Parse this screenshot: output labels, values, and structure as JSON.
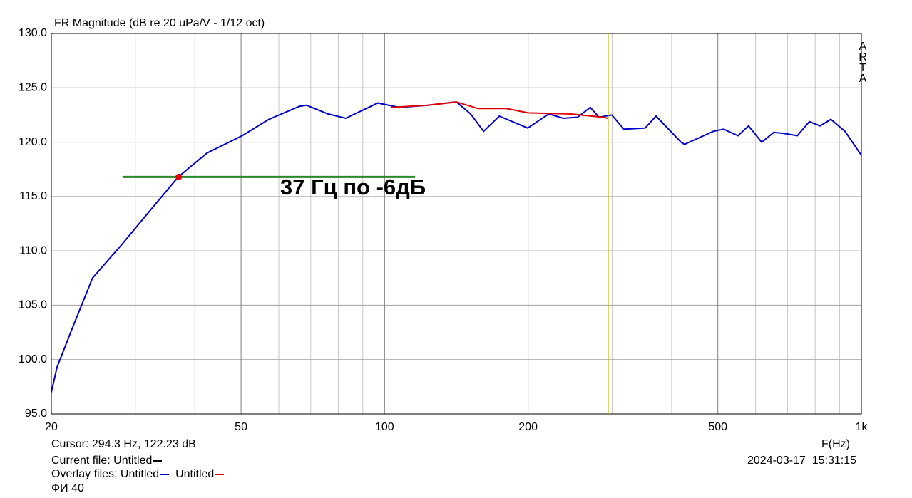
{
  "chart_data": {
    "type": "line",
    "title": "FR Magnitude (dB re 20 uPa/V - 1/12 oct)",
    "xlabel": "F(Hz)",
    "annotation": "37 Гц по -6дБ",
    "watermark": "ARTA",
    "log_x": true,
    "grid": true,
    "xlim": [
      20,
      1000
    ],
    "ylim": [
      95,
      130
    ],
    "xticks": [
      20,
      50,
      100,
      200,
      500,
      {
        "value": 1000,
        "label": "1k"
      }
    ],
    "xgrid_minor": [
      30,
      40,
      60,
      70,
      80,
      90,
      300,
      400,
      600,
      700,
      800,
      900
    ],
    "yticks": [
      {
        "value": 95,
        "label": "95.0"
      },
      {
        "value": 100,
        "label": "100.0"
      },
      {
        "value": 105,
        "label": "105.0"
      },
      {
        "value": 110,
        "label": "110.0"
      },
      {
        "value": 115,
        "label": "115.0"
      },
      {
        "value": 120,
        "label": "120.0"
      },
      {
        "value": 125,
        "label": "125.0"
      },
      {
        "value": 130,
        "label": "130.0"
      }
    ],
    "series": [
      {
        "name": "Untitled",
        "color": "#0000cc",
        "x": [
          20,
          20.56,
          22.0,
          24.4,
          28.0,
          32.2,
          36.9,
          42.4,
          50.3,
          57.2,
          66.3,
          68.6,
          76.1,
          82.9,
          96.8,
          107.4,
          123.2,
          141.4,
          151.5,
          161.3,
          174,
          199.6,
          221,
          237,
          254,
          270,
          281.6,
          299.6,
          317.7,
          352,
          371,
          418.6,
          425.6,
          489,
          514,
          551,
          580,
          618,
          655,
          690,
          734,
          778,
          819,
          863,
          924,
          1000
        ],
        "values": [
          97.0,
          99.3,
          102.6,
          107.5,
          110.5,
          113.7,
          116.8,
          119.0,
          120.6,
          122.1,
          123.3,
          123.4,
          122.6,
          122.2,
          123.6,
          123.2,
          123.4,
          123.7,
          122.6,
          121.0,
          122.4,
          121.3,
          122.6,
          122.2,
          122.3,
          123.2,
          122.3,
          122.5,
          121.2,
          121.3,
          122.4,
          120.0,
          119.8,
          121.0,
          121.2,
          120.6,
          121.5,
          120.0,
          120.9,
          120.8,
          120.6,
          121.9,
          121.5,
          122.1,
          121.0,
          118.8
        ]
      },
      {
        "name": "Untitled",
        "color": "#e00000",
        "x": [
          103,
          123.2,
          141.4,
          157,
          180,
          200,
          245,
          286.6,
          294
        ],
        "values": [
          123.2,
          123.4,
          123.7,
          123.1,
          123.1,
          122.7,
          122.6,
          122.3,
          122.2
        ]
      }
    ],
    "level_line": {
      "color": "#2a8a2a",
      "x": [
        28.2,
        115.8
      ],
      "values": [
        116.8,
        116.8
      ]
    },
    "marker": {
      "color": "#e00000",
      "x": 37,
      "y": 116.8
    },
    "cursor": {
      "x": 294.3,
      "color": "#b8b800"
    }
  },
  "footer": {
    "cursor": "Cursor: 294.3 Hz, 122.23 dB",
    "current_file": "Current file: Untitled",
    "current_color": "#000000",
    "overlay_label": "Overlay files: Untitled",
    "overlay_2": "Untitled",
    "note": "ФИ 40",
    "date": "2024-03-17",
    "time": "15:31:15"
  }
}
